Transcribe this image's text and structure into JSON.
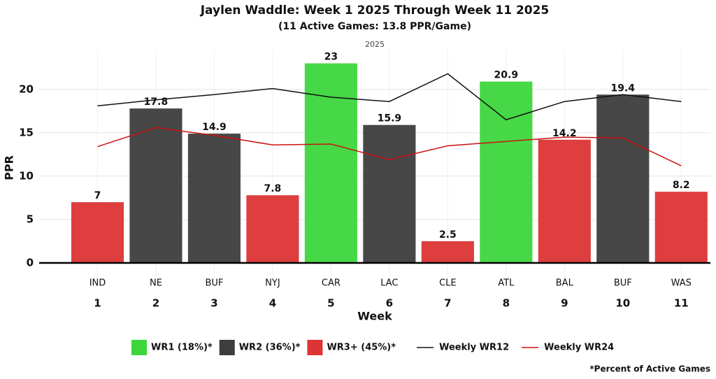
{
  "chart_data": {
    "type": "bar",
    "title": "Jaylen Waddle: Week 1 2025 Through Week 11 2025",
    "subtitle": "(11 Active Games: 13.8 PPR/Game)",
    "strip_label": "2025",
    "x_label": "Week",
    "y_label": "PPR",
    "footnote": "*Percent of Active Games",
    "x": [
      1,
      2,
      3,
      4,
      5,
      6,
      7,
      8,
      9,
      10,
      11
    ],
    "opponents": [
      "IND",
      "NE",
      "BUF",
      "NYJ",
      "CAR",
      "LAC",
      "CLE",
      "ATL",
      "BAL",
      "BUF",
      "WAS"
    ],
    "xlim": [
      0,
      11.5
    ],
    "ylim": [
      -2.5,
      24.5
    ],
    "yticks": [
      0,
      5,
      10,
      15,
      20
    ],
    "grid": true,
    "series": [
      {
        "name": "WR1 (18%)*",
        "type": "bar",
        "color": "#3cd63c",
        "values": [
          null,
          null,
          null,
          null,
          23,
          null,
          null,
          20.9,
          null,
          null,
          null
        ]
      },
      {
        "name": "WR2 (36%)*",
        "type": "bar",
        "color": "#3d3d3d",
        "values": [
          null,
          17.8,
          14.9,
          null,
          null,
          15.9,
          null,
          null,
          null,
          19.4,
          null
        ]
      },
      {
        "name": "WR3+ (45%)*",
        "type": "bar",
        "color": "#dc3434",
        "values": [
          7,
          null,
          null,
          7.8,
          null,
          null,
          2.5,
          null,
          14.2,
          null,
          8.2
        ]
      },
      {
        "name": "Weekly WR12",
        "type": "line",
        "color": "#111111",
        "values": [
          18.1,
          18.8,
          19.4,
          20.1,
          19.1,
          18.6,
          21.8,
          16.5,
          18.6,
          19.4,
          18.6
        ]
      },
      {
        "name": "Weekly WR24",
        "type": "line",
        "color": "#cc1111",
        "values": [
          13.4,
          15.6,
          14.7,
          13.6,
          13.7,
          11.9,
          13.5,
          14.0,
          14.5,
          14.4,
          11.2
        ]
      }
    ]
  }
}
